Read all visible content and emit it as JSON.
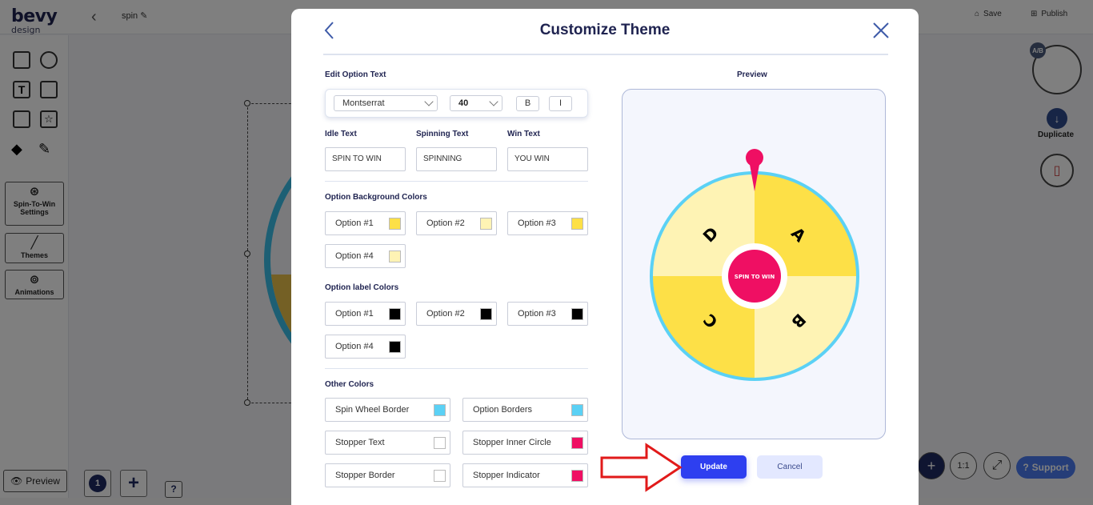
{
  "app": {
    "logo_line1": "bevy",
    "logo_line2": "design",
    "project_name": "spin",
    "save_label": "Save",
    "publish_label": "Publish"
  },
  "sidebar": {
    "cards": [
      {
        "label": "Spin-To-Win Settings"
      },
      {
        "label": "Themes"
      },
      {
        "label": "Animations"
      }
    ],
    "preview_label": "Preview"
  },
  "right_panel": {
    "ab_badge": "A/B",
    "duplicate_label": "Duplicate"
  },
  "bottom": {
    "page_number": "1",
    "help_label": "?",
    "support_label": "Support",
    "ratio_label": "1:1"
  },
  "modal": {
    "title": "Customize Theme",
    "edit_option_text_label": "Edit Option Text",
    "font_family": "Montserrat",
    "font_size": "40",
    "bold_label": "B",
    "italic_label": "I",
    "idle_text_label": "Idle Text",
    "spinning_text_label": "Spinning Text",
    "win_text_label": "Win Text",
    "idle_text_value": "SPIN TO WIN",
    "spinning_text_value": "SPINNING",
    "win_text_value": "YOU WIN",
    "option_bg_colors_label": "Option Background Colors",
    "option_bg_colors": [
      {
        "label": "Option #1",
        "color": "#fde047"
      },
      {
        "label": "Option #2",
        "color": "#fef3b4"
      },
      {
        "label": "Option #3",
        "color": "#fde047"
      },
      {
        "label": "Option #4",
        "color": "#fef3b4"
      }
    ],
    "option_label_colors_label": "Option label Colors",
    "option_label_colors": [
      {
        "label": "Option #1",
        "color": "#000000"
      },
      {
        "label": "Option #2",
        "color": "#000000"
      },
      {
        "label": "Option #3",
        "color": "#000000"
      },
      {
        "label": "Option #4",
        "color": "#000000"
      }
    ],
    "other_colors_label": "Other Colors",
    "other_colors": [
      {
        "label": "Spin Wheel Border",
        "color": "#5bd1f5"
      },
      {
        "label": "Option Borders",
        "color": "#5bd1f5"
      },
      {
        "label": "Stopper Text",
        "color": "#ffffff"
      },
      {
        "label": "Stopper Inner Circle",
        "color": "#ef0f63"
      },
      {
        "label": "Stopper Border",
        "color": "#ffffff"
      },
      {
        "label": "Stopper Indicator",
        "color": "#ef0f63"
      }
    ],
    "preview_label": "Preview",
    "wheel": {
      "center_text": "SPIN TO WIN",
      "segments": [
        "A",
        "B",
        "C",
        "D"
      ]
    },
    "update_label": "Update",
    "cancel_label": "Cancel"
  }
}
